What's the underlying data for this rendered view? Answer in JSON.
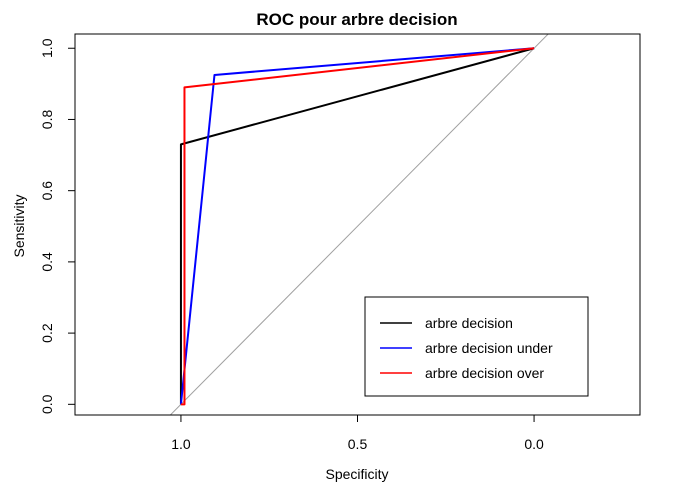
{
  "chart_data": {
    "type": "line",
    "title": "ROC pour arbre decision",
    "xlabel": "Specificity",
    "ylabel": "Sensitivity",
    "xlim": [
      1.3,
      -0.3
    ],
    "ylim": [
      -0.03,
      1.04
    ],
    "x_reversed": true,
    "xticks": [
      1.0,
      0.5,
      0.0
    ],
    "xtick_labels": [
      "1.0",
      "0.5",
      "0.0"
    ],
    "yticks": [
      0.0,
      0.2,
      0.4,
      0.6,
      0.8,
      1.0
    ],
    "ytick_labels": [
      "0.0",
      "0.2",
      "0.4",
      "0.6",
      "0.8",
      "1.0"
    ],
    "diagonal_color": "#a0a0a0",
    "legend_position": "bottom-right",
    "series": [
      {
        "name": "arbre decision",
        "color": "#000000",
        "x": [
          1.0,
          1.0,
          1.0,
          0.0
        ],
        "y": [
          0.0,
          0.0,
          0.73,
          1.0
        ]
      },
      {
        "name": "arbre decision under",
        "color": "#0000ff",
        "x": [
          1.0,
          0.905,
          0.0
        ],
        "y": [
          0.0,
          0.925,
          1.0
        ]
      },
      {
        "name": "arbre decision over",
        "color": "#ff0000",
        "x": [
          1.0,
          0.99,
          0.99,
          0.0
        ],
        "y": [
          0.0,
          0.0,
          0.89,
          1.0
        ]
      }
    ]
  }
}
